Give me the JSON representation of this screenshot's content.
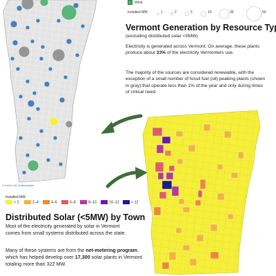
{
  "top_legend": {
    "wind_label": "Wind",
    "installed_label": "Installed MW",
    "sizes": [
      "1",
      "2",
      "5",
      "10",
      "30",
      "50"
    ]
  },
  "top_section": {
    "title": "Vermont Generation by Resource Type",
    "subtitle": "(excluding distributed solar <5MW)",
    "p1_a": "Electricity is generated across Vermont. On average, these plants produce about ",
    "p1_bold": "33%",
    "p1_b": " of the electricity Vermonters use.",
    "p2": "The majority of the sources are considered renewable, with the exception of a small number of fossil fuel (oil) peaking plants (shown in gray) that operate less than 1% of the year and only during times of critical need."
  },
  "credit": {
    "prefix": "Created with ",
    "brand": "Datawrapper"
  },
  "bottom_legend": {
    "title": "Installed MW",
    "items": [
      {
        "label": "< 2",
        "color": "#f5ef3a"
      },
      {
        "label": "2–4",
        "color": "#f2b53a"
      },
      {
        "label": "4–6",
        "color": "#e98a38"
      },
      {
        "label": "6–8",
        "color": "#dd5f62"
      },
      {
        "label": "8–10",
        "color": "#b43c93"
      },
      {
        "label": "10–12",
        "color": "#6a1aa6"
      },
      {
        "label": "> 12",
        "color": "#1c1a8a"
      }
    ]
  },
  "bottom_section": {
    "title": "Distributed Solar (<5MW) by Town",
    "p1": "Most of the electricity generated by solar in Vermont comes from small systems distributed across the state.",
    "p2_a": "Many of these systems are from the ",
    "p2_bold1": "net-metering program",
    "p2_b": ", which has helped develop over ",
    "p2_bold2": "17,300",
    "p2_c": " solar plants in Vermont totaling more than 322 MW."
  },
  "colors": {
    "wind_green": "#4caf6e",
    "fossil_gray": "#8c8c8c",
    "hydro_blue": "#2f6fb0",
    "arrow_green": "#3f6d3a",
    "state_fill": "#e6e6e6"
  }
}
